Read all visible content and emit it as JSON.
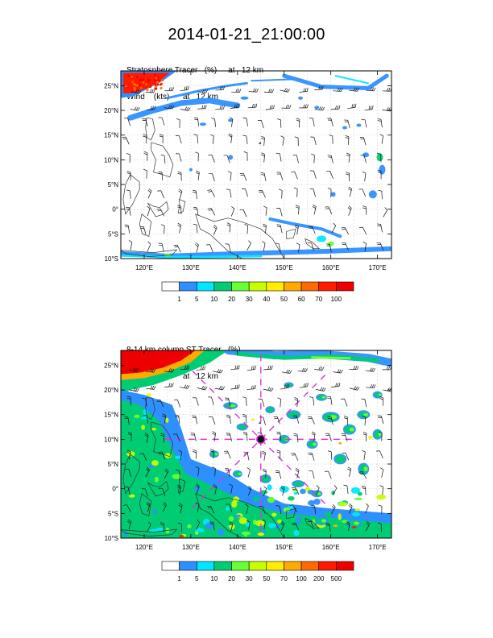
{
  "page_title": "2014-01-21_21:00:00",
  "panels": [
    {
      "subtitle_line1": "Stratosphere Tracer   (%)     at   12 km",
      "subtitle_line2": "Wind    (kts)      at   12 km",
      "lat_labels": [
        "25°N",
        "20°N",
        "15°N",
        "10°N",
        "5°N",
        "0°",
        "5°S",
        "10°S"
      ],
      "lon_labels": [
        "120°E",
        "130°E",
        "140°E",
        "150°E",
        "160°E",
        "170°E"
      ],
      "colorbar_labels": [
        "1",
        "5",
        "10",
        "20",
        "30",
        "40",
        "50",
        "60",
        "70",
        "100"
      ],
      "colorbar_colors": [
        "#ffffff",
        "#2e8fff",
        "#00e6ff",
        "#00cc73",
        "#66ff33",
        "#c8ff00",
        "#ffee00",
        "#ffaa00",
        "#ff6a00",
        "#ff1a00",
        "#ee0000"
      ],
      "cross_marker": false
    },
    {
      "subtitle_line1": "8-14 km column ST Tracer   (%)",
      "subtitle_line2": "Wind    (kts)      at   12 km",
      "lat_labels": [
        "25°N",
        "20°N",
        "15°N",
        "10°N",
        "5°N",
        "0°",
        "5°S",
        "10°S"
      ],
      "lon_labels": [
        "120°E",
        "130°E",
        "140°E",
        "150°E",
        "160°E",
        "170°E"
      ],
      "colorbar_labels": [
        "1",
        "5",
        "10",
        "20",
        "30",
        "50",
        "70",
        "100",
        "200",
        "500"
      ],
      "colorbar_colors": [
        "#ffffff",
        "#2e8fff",
        "#00e6ff",
        "#00cc73",
        "#66ff33",
        "#c8ff00",
        "#ffee00",
        "#ffaa00",
        "#ff6a00",
        "#ff1a00",
        "#ee0000"
      ],
      "cross_marker": true,
      "cross_color": "#dd33dd"
    }
  ],
  "chart_data": [
    {
      "type": "heatmap",
      "title": "Stratosphere Tracer   (%)     at   12 km",
      "overlay": "Wind    (kts)      at   12 km",
      "xlim": [
        115,
        173
      ],
      "ylim": [
        -10,
        28
      ],
      "x_ticks": [
        120,
        130,
        140,
        150,
        160,
        170
      ],
      "y_ticks": [
        25,
        20,
        15,
        10,
        5,
        0,
        -5,
        -10
      ],
      "levels": [
        1,
        5,
        10,
        20,
        30,
        40,
        50,
        60,
        70,
        100
      ],
      "grid": true
    },
    {
      "type": "heatmap",
      "title": "8-14 km column ST Tracer   (%)",
      "overlay": "Wind    (kts)      at   12 km",
      "xlim": [
        115,
        173
      ],
      "ylim": [
        -10,
        28
      ],
      "x_ticks": [
        120,
        130,
        140,
        150,
        160,
        170
      ],
      "y_ticks": [
        25,
        20,
        15,
        10,
        5,
        0,
        -5,
        -10
      ],
      "levels": [
        1,
        5,
        10,
        20,
        30,
        50,
        70,
        100,
        200,
        500
      ],
      "grid": true,
      "marker_center": [
        145,
        10
      ]
    }
  ]
}
